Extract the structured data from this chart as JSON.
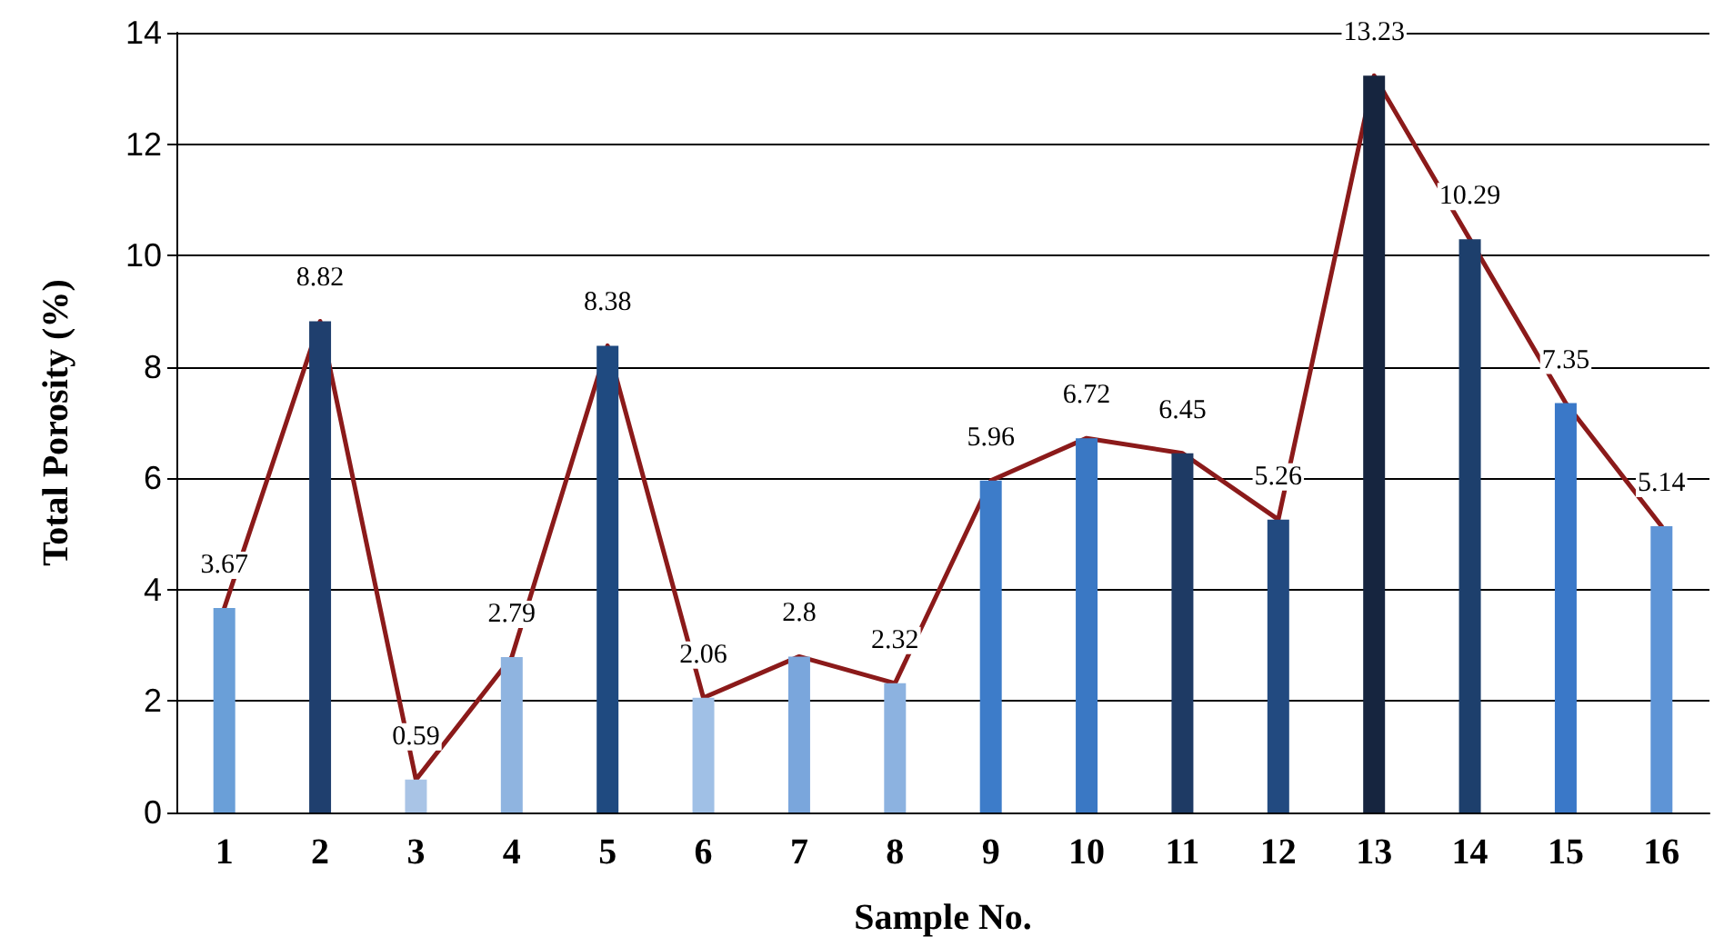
{
  "chart_data": {
    "type": "bar",
    "xlabel": "Sample No.",
    "ylabel": "Total Porosity (%)",
    "categories": [
      "1",
      "2",
      "3",
      "4",
      "5",
      "6",
      "7",
      "8",
      "9",
      "10",
      "11",
      "12",
      "13",
      "14",
      "15",
      "16"
    ],
    "series": [
      {
        "value_labels": [
          "3.67",
          "8.82",
          "0.59",
          "2.79",
          "8.38",
          "2.06",
          "2.8",
          "2.32",
          "5.96",
          "6.72",
          "6.45",
          "5.26",
          "13.23",
          "10.29",
          "7.35",
          "5.14"
        ],
        "colors": [
          "#6a9fd8",
          "#1f3f6e",
          "#a9c4e6",
          "#8fb4e0",
          "#1f4a80",
          "#a0c0e6",
          "#7aa6dc",
          "#8cb2e0",
          "#3d7cc9",
          "#3a78c4",
          "#1e3a64",
          "#224a80",
          "#16253f",
          "#1d3f6c",
          "#3a78c8",
          "#5e94d6"
        ],
        "values": [
          3.67,
          8.82,
          0.59,
          2.79,
          8.38,
          2.06,
          2.8,
          2.32,
          5.96,
          6.72,
          6.45,
          5.26,
          13.23,
          10.29,
          7.35,
          5.14
        ]
      },
      {
        "type": "line",
        "color": "#8b1a1a",
        "values": [
          3.67,
          8.82,
          0.59,
          2.79,
          8.38,
          2.06,
          2.8,
          2.32,
          5.96,
          6.72,
          6.45,
          5.26,
          13.23,
          10.29,
          7.35,
          5.14
        ]
      }
    ],
    "ylim": [
      0,
      14
    ],
    "yticks": [
      0,
      2,
      4,
      6,
      8,
      10,
      12,
      14
    ],
    "grid": "y",
    "marker": "none",
    "line_style": "solid"
  }
}
